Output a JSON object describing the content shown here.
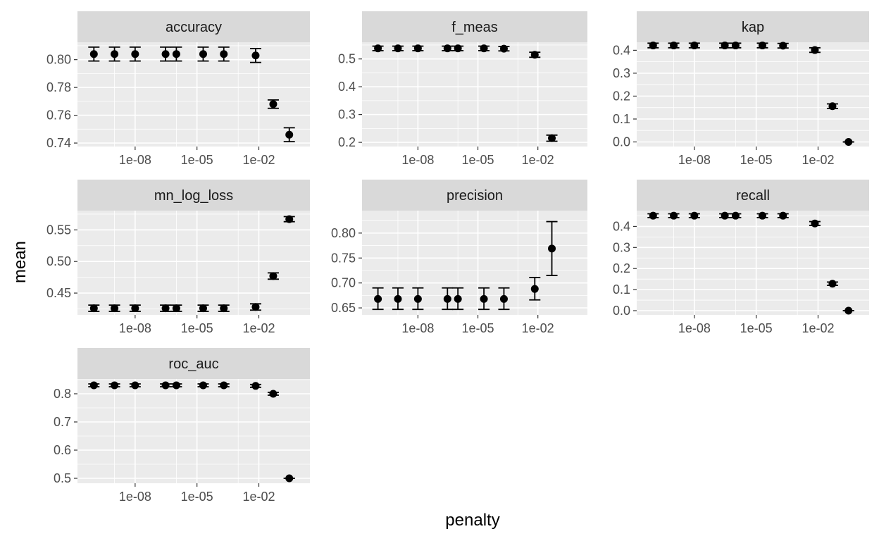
{
  "chart_data": {
    "type": "scatter",
    "layout": "facet_wrap",
    "facet_columns": 3,
    "xlabel": "penalty",
    "ylabel": "mean",
    "x_scale": "log10",
    "x_ticks": [
      1e-08,
      1e-05,
      0.01
    ],
    "x_tick_labels": [
      "1e-08",
      "1e-05",
      "1e-02"
    ],
    "x_values": [
      1e-10,
      1e-09,
      1e-08,
      3e-07,
      1e-06,
      2e-05,
      0.0002,
      0.007,
      0.05,
      0.3
    ],
    "grid": true,
    "legend": "none",
    "error_bars": true,
    "colors": {
      "panel_bg": "#ebebeb",
      "strip_bg": "#d9d9d9",
      "grid": "#ffffff",
      "point": "#000000"
    },
    "facets": [
      {
        "name": "accuracy",
        "ylim": [
          0.7375,
          0.8125
        ],
        "y_ticks": [
          0.74,
          0.76,
          0.78,
          0.8
        ],
        "y_tick_labels": [
          "0.74",
          "0.76",
          "0.78",
          "0.80"
        ],
        "mean": [
          0.804,
          0.804,
          0.804,
          0.804,
          0.804,
          0.804,
          0.804,
          0.803,
          0.768,
          0.746
        ],
        "lower": [
          0.799,
          0.799,
          0.799,
          0.799,
          0.799,
          0.799,
          0.799,
          0.798,
          0.765,
          0.741
        ],
        "upper": [
          0.809,
          0.809,
          0.809,
          0.809,
          0.809,
          0.809,
          0.809,
          0.808,
          0.771,
          0.751
        ]
      },
      {
        "name": "f_meas",
        "ylim": [
          0.185,
          0.56
        ],
        "y_ticks": [
          0.2,
          0.3,
          0.4,
          0.5
        ],
        "y_tick_labels": [
          "0.2",
          "0.3",
          "0.4",
          "0.5"
        ],
        "mean": [
          0.538,
          0.538,
          0.538,
          0.538,
          0.538,
          0.538,
          0.537,
          0.515,
          0.215,
          null
        ],
        "lower": [
          0.53,
          0.53,
          0.53,
          0.53,
          0.53,
          0.53,
          0.529,
          0.506,
          0.204,
          null
        ],
        "upper": [
          0.546,
          0.546,
          0.546,
          0.546,
          0.546,
          0.546,
          0.545,
          0.524,
          0.226,
          null
        ]
      },
      {
        "name": "kap",
        "ylim": [
          -0.02,
          0.435
        ],
        "y_ticks": [
          0.0,
          0.1,
          0.2,
          0.3,
          0.4
        ],
        "y_tick_labels": [
          "0.0",
          "0.1",
          "0.2",
          "0.3",
          "0.4"
        ],
        "mean": [
          0.421,
          0.421,
          0.421,
          0.421,
          0.421,
          0.421,
          0.42,
          0.401,
          0.156,
          0.0
        ],
        "lower": [
          0.411,
          0.411,
          0.411,
          0.411,
          0.411,
          0.411,
          0.41,
          0.391,
          0.146,
          0.0
        ],
        "upper": [
          0.431,
          0.431,
          0.431,
          0.431,
          0.431,
          0.431,
          0.43,
          0.411,
          0.166,
          0.0
        ]
      },
      {
        "name": "mn_log_loss",
        "ylim": [
          0.4155,
          0.5805
        ],
        "y_ticks": [
          0.45,
          0.5,
          0.55
        ],
        "y_tick_labels": [
          "0.45",
          "0.50",
          "0.55"
        ],
        "mean": [
          0.426,
          0.426,
          0.426,
          0.426,
          0.426,
          0.426,
          0.426,
          0.428,
          0.477,
          0.567
        ],
        "lower": [
          0.421,
          0.421,
          0.421,
          0.421,
          0.421,
          0.421,
          0.421,
          0.423,
          0.472,
          0.563
        ],
        "upper": [
          0.431,
          0.431,
          0.431,
          0.431,
          0.431,
          0.431,
          0.431,
          0.433,
          0.482,
          0.571
        ]
      },
      {
        "name": "precision",
        "ylim": [
          0.636,
          0.845
        ],
        "y_ticks": [
          0.65,
          0.7,
          0.75,
          0.8
        ],
        "y_tick_labels": [
          "0.65",
          "0.70",
          "0.75",
          "0.80"
        ],
        "mean": [
          0.668,
          0.668,
          0.668,
          0.668,
          0.668,
          0.668,
          0.668,
          0.688,
          0.769,
          null
        ],
        "lower": [
          0.647,
          0.647,
          0.647,
          0.647,
          0.647,
          0.647,
          0.647,
          0.666,
          0.715,
          null
        ],
        "upper": [
          0.69,
          0.69,
          0.69,
          0.69,
          0.69,
          0.69,
          0.69,
          0.711,
          0.823,
          null
        ]
      },
      {
        "name": "recall",
        "ylim": [
          -0.02,
          0.475
        ],
        "y_ticks": [
          0.0,
          0.1,
          0.2,
          0.3,
          0.4
        ],
        "y_tick_labels": [
          "0.0",
          "0.1",
          "0.2",
          "0.3",
          "0.4"
        ],
        "mean": [
          0.451,
          0.451,
          0.451,
          0.451,
          0.451,
          0.451,
          0.451,
          0.414,
          0.128,
          0.0
        ],
        "lower": [
          0.442,
          0.442,
          0.442,
          0.442,
          0.442,
          0.442,
          0.442,
          0.405,
          0.12,
          0.0
        ],
        "upper": [
          0.46,
          0.46,
          0.46,
          0.46,
          0.46,
          0.46,
          0.46,
          0.423,
          0.136,
          0.0
        ]
      },
      {
        "name": "roc_auc",
        "ylim": [
          0.4825,
          0.8525
        ],
        "y_ticks": [
          0.5,
          0.6,
          0.7,
          0.8
        ],
        "y_tick_labels": [
          "0.5",
          "0.6",
          "0.7",
          "0.8"
        ],
        "mean": [
          0.83,
          0.83,
          0.83,
          0.83,
          0.83,
          0.83,
          0.83,
          0.828,
          0.8,
          0.5
        ],
        "lower": [
          0.825,
          0.825,
          0.825,
          0.825,
          0.825,
          0.825,
          0.825,
          0.823,
          0.795,
          0.5
        ],
        "upper": [
          0.835,
          0.835,
          0.835,
          0.835,
          0.835,
          0.835,
          0.835,
          0.833,
          0.805,
          0.5
        ]
      }
    ]
  }
}
